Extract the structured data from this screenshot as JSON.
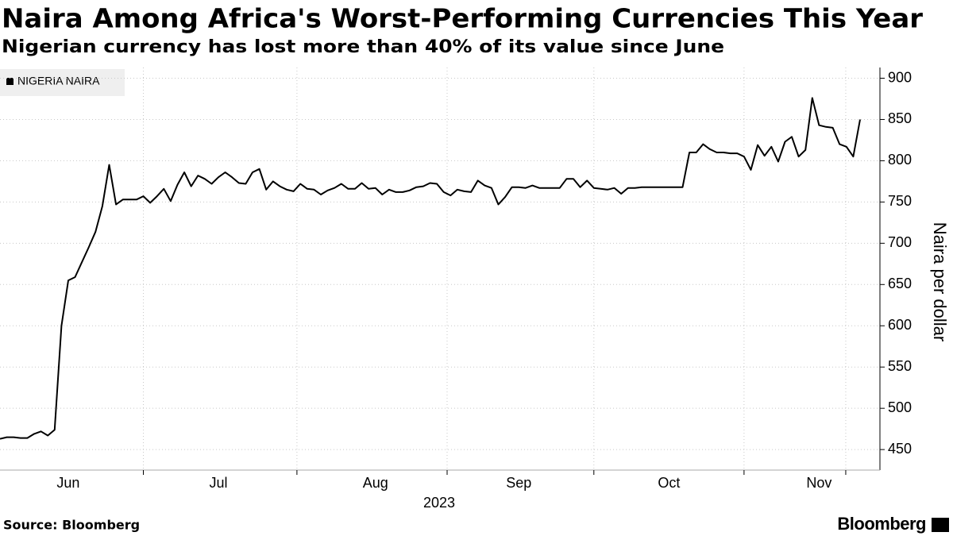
{
  "chart_data": {
    "type": "line",
    "title": "Naira Among Africa's Worst-Performing Currencies This Year",
    "subtitle": "Nigerian currency has lost more than 40% of its value since June",
    "ylabel": "Naira per dollar",
    "xlabel": "2023",
    "source": "Source: Bloomberg",
    "brand": "Bloomberg",
    "legend": "top-left",
    "grid": true,
    "ylim": [
      428,
      913
    ],
    "yticks": [
      450,
      500,
      550,
      600,
      650,
      700,
      750,
      800,
      850,
      900
    ],
    "categories": [
      null,
      null,
      null,
      null,
      null,
      null,
      null,
      null,
      null,
      null,
      "Jun",
      null,
      null,
      null,
      null,
      null,
      null,
      null,
      null,
      null,
      null,
      null,
      null,
      null,
      null,
      null,
      null,
      null,
      null,
      null,
      null,
      null,
      "Jul",
      null,
      null,
      null,
      null,
      null,
      null,
      null,
      null,
      null,
      null,
      null,
      null,
      null,
      null,
      null,
      null,
      null,
      null,
      null,
      null,
      null,
      null,
      "Aug",
      null,
      null,
      null,
      null,
      null,
      null,
      null,
      null,
      null,
      null,
      null,
      null,
      null,
      null,
      null,
      null,
      null,
      null,
      null,
      null,
      "Sep",
      null,
      null,
      null,
      null,
      null,
      null,
      null,
      null,
      null,
      null,
      null,
      null,
      null,
      null,
      null,
      null,
      null,
      null,
      null,
      null,
      null,
      "Oct",
      null,
      null,
      null,
      null,
      null,
      null,
      null,
      null,
      null,
      null,
      null,
      null,
      null,
      null,
      null,
      null,
      null,
      null,
      null,
      null,
      null,
      "Nov",
      null,
      null,
      null,
      null,
      null,
      null
    ],
    "series": [
      {
        "name": "NIGERIA NAIRA",
        "color": "#000000",
        "values": [
          463,
          465,
          465,
          464,
          464,
          469,
          472,
          467,
          474,
          600,
          655,
          659,
          677,
          695,
          714,
          745,
          795,
          747,
          753,
          753,
          753,
          757,
          749,
          757,
          766,
          751,
          771,
          786,
          769,
          782,
          778,
          772,
          780,
          786,
          780,
          773,
          772,
          786,
          790,
          765,
          775,
          769,
          765,
          763,
          772,
          766,
          765,
          759,
          764,
          767,
          772,
          766,
          766,
          773,
          766,
          767,
          759,
          765,
          762,
          762,
          764,
          768,
          769,
          773,
          772,
          762,
          758,
          765,
          763,
          762,
          776,
          770,
          767,
          747,
          756,
          768,
          768,
          767,
          770,
          767,
          767,
          767,
          767,
          778,
          778,
          768,
          776,
          767,
          766,
          765,
          767,
          760,
          767,
          767,
          768,
          768,
          768,
          768,
          768,
          768,
          768,
          810,
          810,
          820,
          814,
          810,
          810,
          809,
          809,
          805,
          789,
          819,
          806,
          817,
          799,
          823,
          829,
          805,
          813,
          876,
          843,
          841,
          840,
          820,
          817,
          805,
          850
        ]
      }
    ]
  }
}
